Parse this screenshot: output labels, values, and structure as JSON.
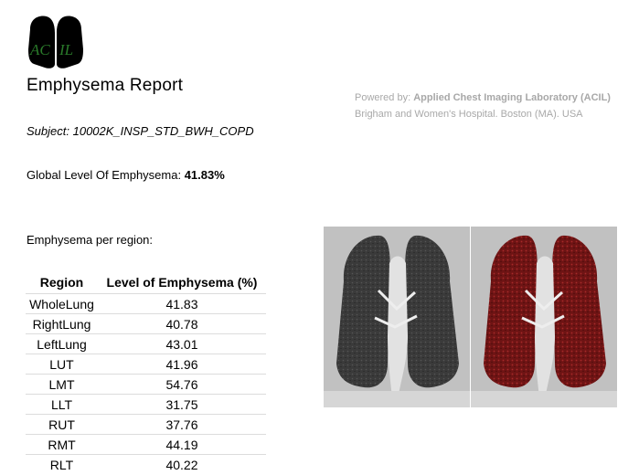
{
  "logo": {
    "letters_left": "AC",
    "letters_right": "IL",
    "letter_color": "#2a7a2a"
  },
  "report": {
    "title": "Emphysema Report"
  },
  "powered_by": {
    "prefix": "Powered by:",
    "lab": "Applied Chest Imaging Laboratory (ACIL)",
    "address": "Brigham and Women's Hospital. Boston (MA). USA"
  },
  "subject": {
    "label": "Subject:",
    "value": "10002K_INSP_STD_BWH_COPD"
  },
  "global": {
    "label": "Global Level Of Emphysema:",
    "value": "41.83%"
  },
  "per_region_heading": "Emphysema per region:",
  "table": {
    "headers": [
      "Region",
      "Level of Emphysema (%)"
    ],
    "rows": [
      [
        "WholeLung",
        "41.83"
      ],
      [
        "RightLung",
        "40.78"
      ],
      [
        "LeftLung",
        "43.01"
      ],
      [
        "LUT",
        "41.96"
      ],
      [
        "LMT",
        "54.76"
      ],
      [
        "LLT",
        "31.75"
      ],
      [
        "RUT",
        "37.76"
      ],
      [
        "RMT",
        "44.19"
      ],
      [
        "RLT",
        "40.22"
      ]
    ]
  },
  "colors": {
    "emphysema_overlay": "#8b1a1a",
    "powered_text": "#a8a8a8"
  }
}
